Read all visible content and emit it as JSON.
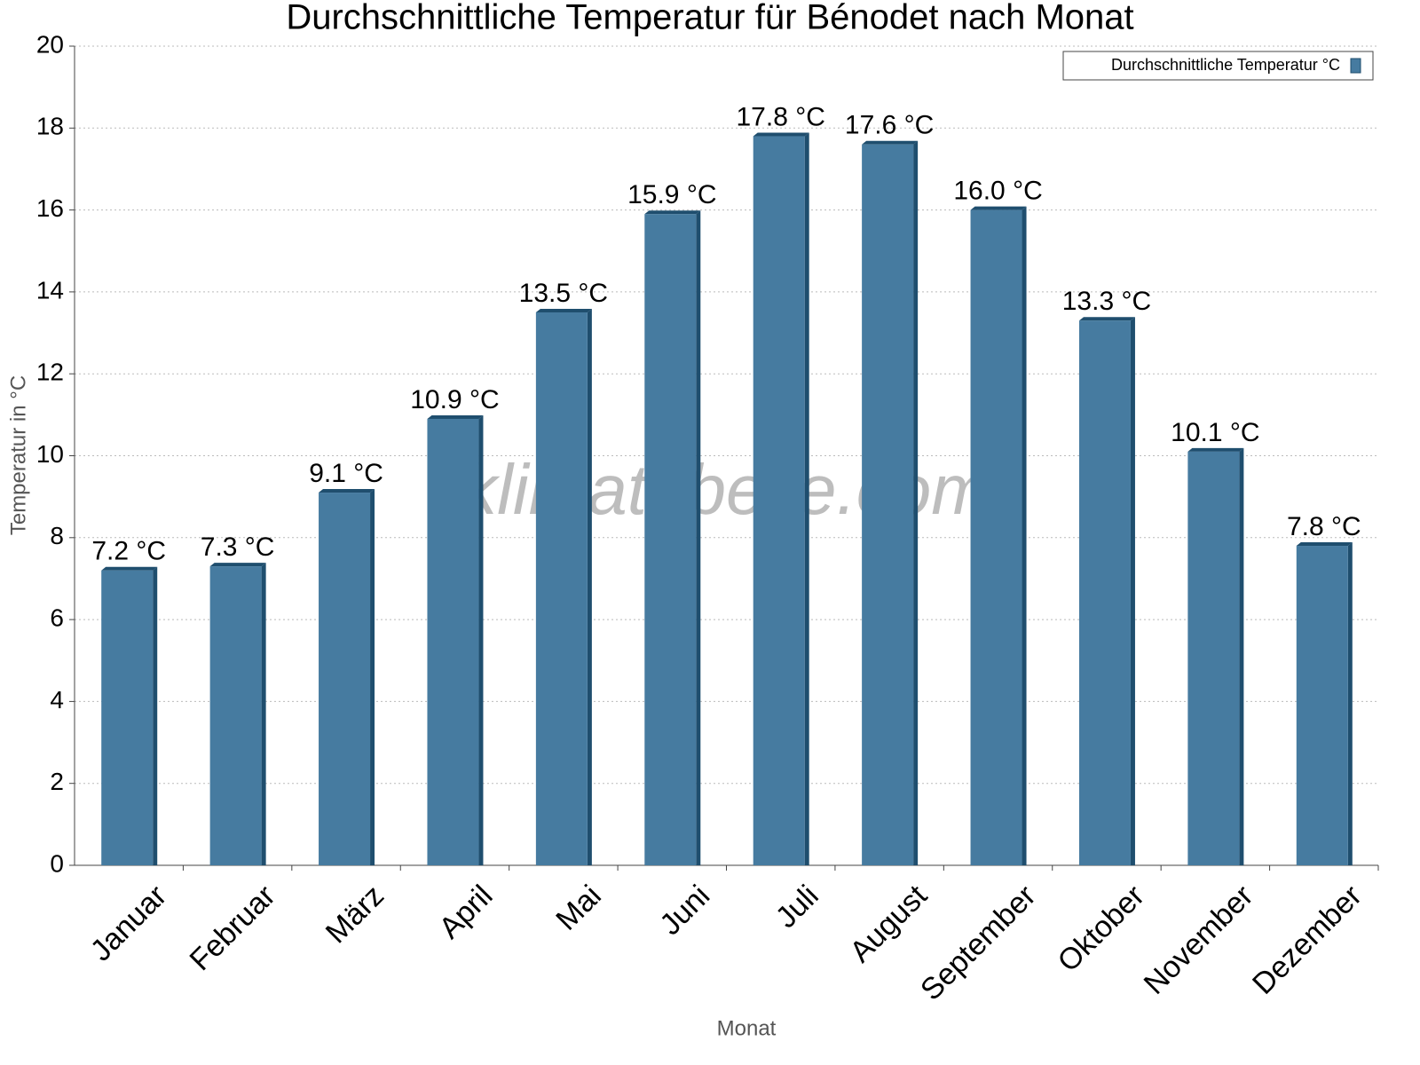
{
  "chart_data": {
    "type": "bar",
    "title": "Durchschnittliche Temperatur für Bénodet nach Monat",
    "x_label": "Monat",
    "y_label": "Temperatur in °C",
    "watermark": "klimatabelle.com",
    "categories": [
      "Januar",
      "Februar",
      "März",
      "April",
      "Mai",
      "Juni",
      "Juli",
      "August",
      "September",
      "Oktober",
      "November",
      "Dezember"
    ],
    "series": [
      {
        "name": "Durchschnittliche Temperatur °C",
        "color": "#467ba0",
        "values": [
          7.2,
          7.3,
          9.1,
          10.9,
          13.5,
          15.9,
          17.8,
          17.6,
          16.0,
          13.3,
          10.1,
          7.8
        ],
        "value_labels": [
          "7.2 °C",
          "7.3 °C",
          "9.1 °C",
          "10.9 °C",
          "13.5 °C",
          "15.9 °C",
          "17.8 °C",
          "17.6 °C",
          "16.0 °C",
          "13.3 °C",
          "10.1 °C",
          "7.8 °C"
        ]
      }
    ],
    "ylim": [
      0,
      20
    ],
    "yticks": [
      0,
      2,
      4,
      6,
      8,
      10,
      12,
      14,
      16,
      18,
      20
    ],
    "grid": true,
    "legend": "top-right"
  }
}
